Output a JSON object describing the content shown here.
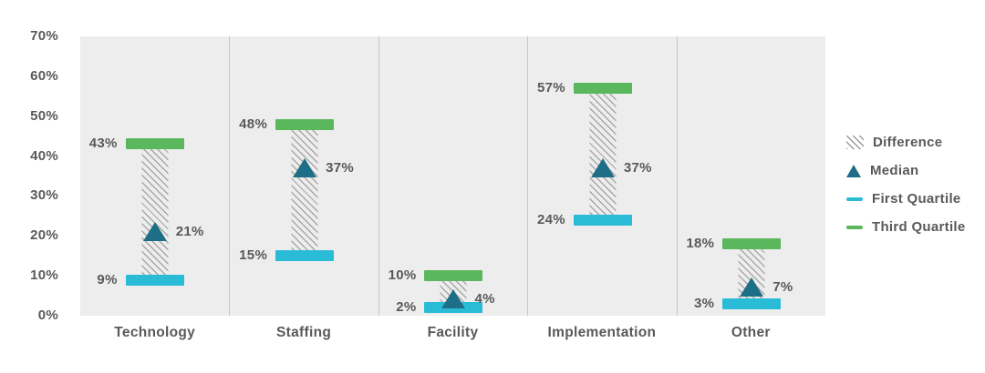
{
  "chart_data": {
    "type": "box",
    "title": "",
    "categories": [
      "Technology",
      "Staffing",
      "Facility",
      "Implementation",
      "Other"
    ],
    "series": [
      {
        "name": "First Quartile",
        "values": [
          9,
          15,
          2,
          24,
          3
        ]
      },
      {
        "name": "Median",
        "values": [
          21,
          37,
          4,
          37,
          7
        ]
      },
      {
        "name": "Third Quartile",
        "values": [
          43,
          48,
          10,
          57,
          18
        ]
      }
    ],
    "xlabel": "",
    "ylabel": "",
    "ylim": [
      0,
      70
    ],
    "y_ticks": [
      "0%",
      "10%",
      "20%",
      "30%",
      "40%",
      "50%",
      "60%",
      "70%"
    ],
    "value_suffix": "%",
    "grid": false,
    "legend_position": "right"
  },
  "legend": {
    "items": [
      {
        "label": "Difference",
        "icon": "hatch-swatch-icon",
        "type": "hatch"
      },
      {
        "label": "Median",
        "icon": "triangle-icon",
        "type": "triangle"
      },
      {
        "label": "First Quartile",
        "icon": "dash-icon",
        "type": "dash",
        "color": "#2ABCD6"
      },
      {
        "label": "Third Quartile",
        "icon": "dash-icon",
        "type": "dash",
        "color": "#5BB75B"
      }
    ]
  },
  "colors": {
    "plot_background": "#EDEDED",
    "first_quartile": "#2ABCD6",
    "third_quartile": "#5BB75B",
    "median": "#1F6E87",
    "hatch_line": "#A8A8A8",
    "text": "#58595B",
    "divider": "#C6C6C6"
  }
}
